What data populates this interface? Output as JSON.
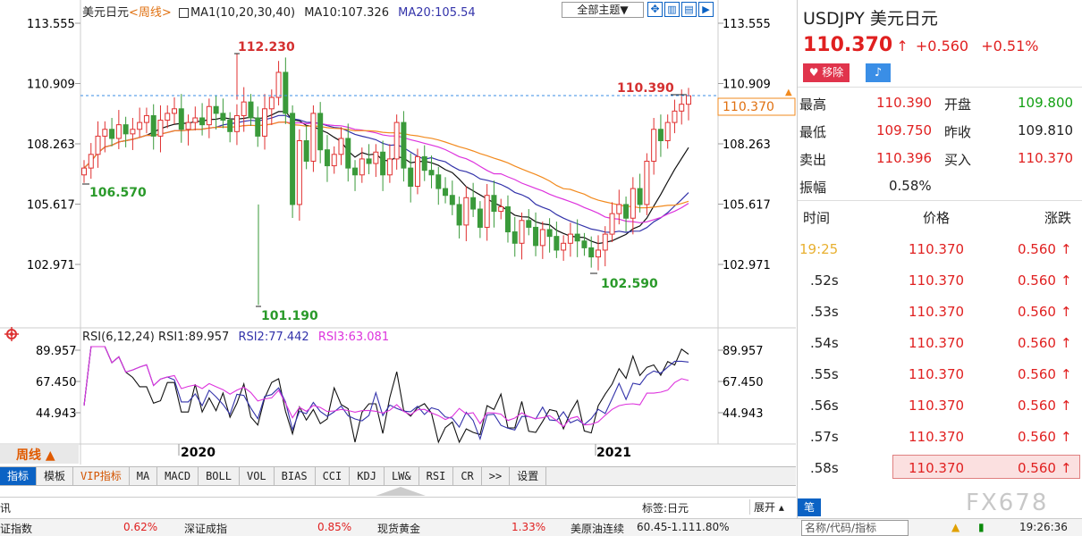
{
  "header": {
    "symbol_label": "美元日元",
    "period_link": "<周线>",
    "ma_label": "MA1(10,20,30,40)",
    "ma10": "MA10:107.326",
    "ma20": "MA20:105.54",
    "theme_button": "全部主题▼"
  },
  "main_chart": {
    "y_ticks": [
      "113.555",
      "110.909",
      "108.263",
      "105.617",
      "102.971"
    ],
    "annotations": {
      "high": "112.230",
      "low": "101.190",
      "left_low": "106.570",
      "recent_low": "102.590",
      "recent_high": "110.390"
    },
    "current_price_tag": "110.370",
    "colors": {
      "up": "#e03030",
      "down": "#3a9a3a",
      "ma10": "#111111",
      "ma20": "#3333aa",
      "ma30": "#dd33dd",
      "ma40": "#f28a1e"
    }
  },
  "rsi_panel": {
    "label": "RSI(6,12,24)",
    "rsi1": "RSI1:89.957",
    "rsi2": "RSI2:77.442",
    "rsi3": "RSI3:63.081",
    "y_ticks": [
      "89.957",
      "67.450",
      "44.943"
    ]
  },
  "x_axis": {
    "period_button": "周线 ▲",
    "years": [
      "2020",
      "2021"
    ]
  },
  "tabs": [
    "指标",
    "模板",
    "VIP指标",
    "MA",
    "MACD",
    "BOLL",
    "VOL",
    "BIAS",
    "CCI",
    "KDJ",
    "LW&",
    "RSI",
    "CR",
    ">>",
    "设置"
  ],
  "news": {
    "left": "讯",
    "tag": "标签:日元",
    "expand": "展开 ▴"
  },
  "status": {
    "items": [
      {
        "name": "证指数",
        "value": "0.62%"
      },
      {
        "name": "深证成指",
        "value": "0.85%"
      },
      {
        "name": "现货黄金",
        "value": "1.33%"
      },
      {
        "name": "美原油连续",
        "value": "60.45-1.111.80%"
      }
    ],
    "search_placeholder": "名称/代码/指标",
    "time": "19:26:36",
    "watermark": "FX678"
  },
  "quote": {
    "title": "USDJPY 美元日元",
    "price": "110.370",
    "change": "+0.560",
    "change_pct": "+0.51%",
    "remove_btn": "移除",
    "rows": [
      {
        "l1": "最高",
        "v1": "110.390",
        "l2": "开盘",
        "v2": "109.800"
      },
      {
        "l1": "最低",
        "v1": "109.750",
        "l2": "昨收",
        "v2": "109.810"
      },
      {
        "l1": "卖出",
        "v1": "110.396",
        "l2": "买入",
        "v2": "110.370"
      },
      {
        "l1": "振幅",
        "v1": "0.58%"
      }
    ],
    "tick_headers": [
      "时间",
      "价格",
      "涨跌"
    ],
    "ticks": [
      {
        "t": "19:25",
        "p": "110.370",
        "c": "0.560"
      },
      {
        "t": ".52s",
        "p": "110.370",
        "c": "0.560"
      },
      {
        "t": ".53s",
        "p": "110.370",
        "c": "0.560"
      },
      {
        "t": ".54s",
        "p": "110.370",
        "c": "0.560"
      },
      {
        "t": ".55s",
        "p": "110.370",
        "c": "0.560"
      },
      {
        "t": ".56s",
        "p": "110.370",
        "c": "0.560"
      },
      {
        "t": ".57s",
        "p": "110.370",
        "c": "0.560"
      },
      {
        "t": ".58s",
        "p": "110.370",
        "c": "0.560"
      }
    ],
    "bottom_tab": "笔"
  }
}
